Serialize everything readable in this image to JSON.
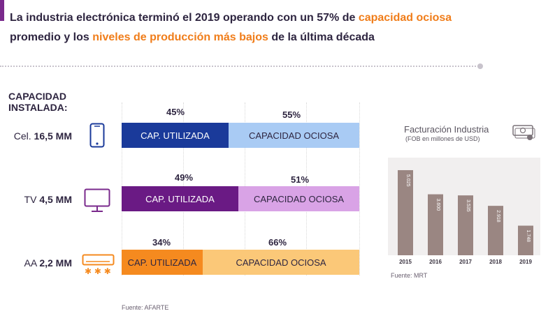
{
  "headline": {
    "part1": "La industria electrónica terminó el 2019 operando con un 57% de ",
    "hl1": "capacidad ociosa",
    "part2": "promedio y los ",
    "hl2": "niveles de producción más bajos",
    "part3": " de la última década"
  },
  "capacity": {
    "title_line1": "CAPACIDAD",
    "title_line2": "INSTALADA:",
    "rows": [
      {
        "label": "Cel. ",
        "amount": "16,5 MM",
        "icon": "phone-icon",
        "used_pct_label": "45%",
        "idle_pct_label": "55%",
        "used": 45,
        "idle": 55,
        "used_label": "CAP. UTILIZADA",
        "idle_label": "CAPACIDAD OCIOSA",
        "used_color": "#1a3a9a",
        "idle_color": "#a9cbf4"
      },
      {
        "label": "TV ",
        "amount": "4,5 MM",
        "icon": "monitor-icon",
        "used_pct_label": "49%",
        "idle_pct_label": "51%",
        "used": 49,
        "idle": 51,
        "used_label": "CAP. UTILIZADA",
        "idle_label": "CAPACIDAD OCIOSA",
        "used_color": "#6a1a84",
        "idle_color": "#d9a3e6"
      },
      {
        "label": "AA ",
        "amount": "2,2 MM",
        "icon": "air-conditioner-icon",
        "used_pct_label": "34%",
        "idle_pct_label": "66%",
        "used": 34,
        "idle": 66,
        "used_label": "CAP. UTILIZADA",
        "idle_label": "CAPACIDAD OCIOSA",
        "used_color": "#f58a1f",
        "idle_color": "#fbc878"
      }
    ],
    "source": "Fuente: AFARTE"
  },
  "billing_chart": {
    "title": "Facturación Industria",
    "subtitle": "(FOB en millones de USD)",
    "source": "Fuente: MRT",
    "icon": "money-icon",
    "bar_color": "#9a8682"
  },
  "chart_data": {
    "type": "bar",
    "title": "Facturación Industria",
    "subtitle": "(FOB en millones de USD)",
    "categories": [
      "2015",
      "2016",
      "2017",
      "2018",
      "2019"
    ],
    "values": [
      5025,
      3600,
      3535,
      2918,
      1748
    ],
    "value_labels": [
      "5.025",
      "3.600",
      "3.535",
      "2.918",
      "1.748"
    ],
    "ylim": [
      0,
      5600
    ]
  },
  "colors": {
    "accent": "#7a2a8c",
    "highlight": "#f07d1a",
    "text": "#2e2540"
  }
}
